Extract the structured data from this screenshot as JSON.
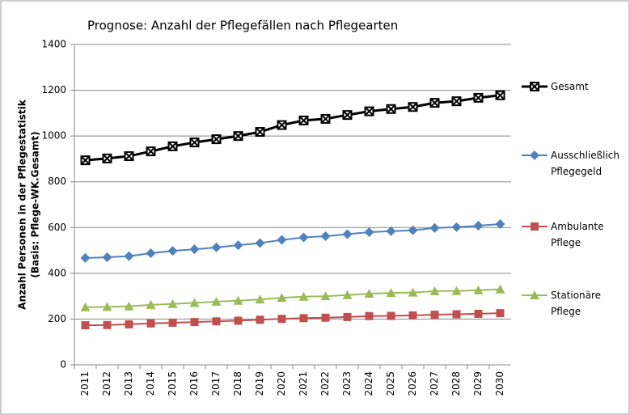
{
  "chart_data": {
    "type": "line",
    "title": "Prognose: Anzahl der Pflegefällen nach Pflegearten",
    "ylabel": [
      "Anzahl Personen in der Pflegestatistik",
      "(Basis: Pflege-WK.Gesamt)"
    ],
    "categories": [
      "2011",
      "2012",
      "2013",
      "2014",
      "2015",
      "2016",
      "2017",
      "2018",
      "2019",
      "2020",
      "2021",
      "2022",
      "2023",
      "2024",
      "2025",
      "2026",
      "2027",
      "2028",
      "2029",
      "2030"
    ],
    "ylim": [
      0,
      1400
    ],
    "yticks": [
      0,
      200,
      400,
      600,
      800,
      1000,
      1200,
      1400
    ],
    "grid": true,
    "legend": "right",
    "series": [
      {
        "name": "Gesamt",
        "color": "#000000",
        "marker": "x-square",
        "values": [
          894,
          902,
          912,
          933,
          955,
          972,
          986,
          1000,
          1018,
          1048,
          1068,
          1075,
          1092,
          1108,
          1118,
          1127,
          1145,
          1152,
          1167,
          1178
        ]
      },
      {
        "name": "Ausschließlich Pflegegeld",
        "color": "#4f81bd",
        "marker": "diamond",
        "values": [
          467,
          470,
          475,
          488,
          498,
          505,
          513,
          523,
          532,
          546,
          557,
          562,
          571,
          580,
          584,
          588,
          598,
          602,
          608,
          615
        ]
      },
      {
        "name": "Ambulante Pflege",
        "color": "#c0504d",
        "marker": "square",
        "values": [
          173,
          174,
          177,
          181,
          184,
          187,
          190,
          193,
          197,
          201,
          204,
          206,
          209,
          213,
          214,
          216,
          219,
          221,
          223,
          226
        ]
      },
      {
        "name": "Stationäre Pflege",
        "color": "#9bbb59",
        "marker": "triangle",
        "values": [
          252,
          253,
          256,
          262,
          266,
          271,
          276,
          280,
          286,
          293,
          298,
          300,
          305,
          311,
          314,
          316,
          322,
          323,
          326,
          330
        ]
      }
    ]
  }
}
